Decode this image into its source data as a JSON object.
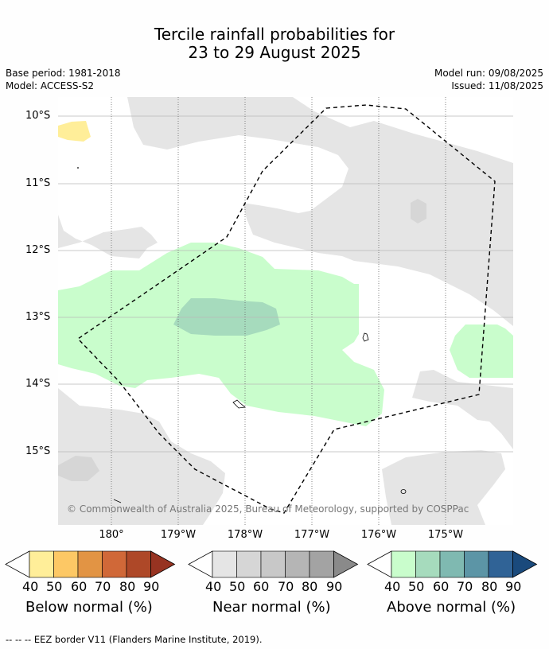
{
  "title_line1": "Tercile rainfall probabilities for",
  "title_line2": "23 to 29 August 2025",
  "base_period": "Base period: 1981-2018",
  "model": "Model: ACCESS-S2",
  "model_run": "Model run: 09/08/2025",
  "issued": "Issued: 11/08/2025",
  "lat_labels": [
    "10°S",
    "11°S",
    "12°S",
    "13°S",
    "14°S",
    "15°S"
  ],
  "lon_labels": [
    "180°",
    "179°W",
    "178°W",
    "177°W",
    "176°W",
    "175°W"
  ],
  "copyright": "© Commonwealth of Australia 2025, Bureau of Meteorology, supported by COSPPac",
  "colorbars": [
    {
      "title": "Below normal (%)",
      "ticks": [
        "40",
        "50",
        "60",
        "70",
        "80",
        "90"
      ],
      "colors": [
        "#ffee99",
        "#fdc865",
        "#e29444",
        "#d06838",
        "#ae4828",
        "#973321"
      ]
    },
    {
      "title": "Near normal (%)",
      "ticks": [
        "40",
        "50",
        "60",
        "70",
        "80",
        "90"
      ],
      "colors": [
        "#e5e5e5",
        "#d6d6d6",
        "#c8c8c8",
        "#b5b5b5",
        "#a3a3a3",
        "#8a8a8a"
      ]
    },
    {
      "title": "Above normal (%)",
      "ticks": [
        "40",
        "50",
        "60",
        "70",
        "80",
        "90"
      ],
      "colors": [
        "#c9fdcc",
        "#a6dbbd",
        "#7fb9b1",
        "#5c95a6",
        "#306396",
        "#1a4a7c"
      ]
    }
  ],
  "footer": "-- -- -- EEZ border V11 (Flanders Marine Institute, 2019)."
}
